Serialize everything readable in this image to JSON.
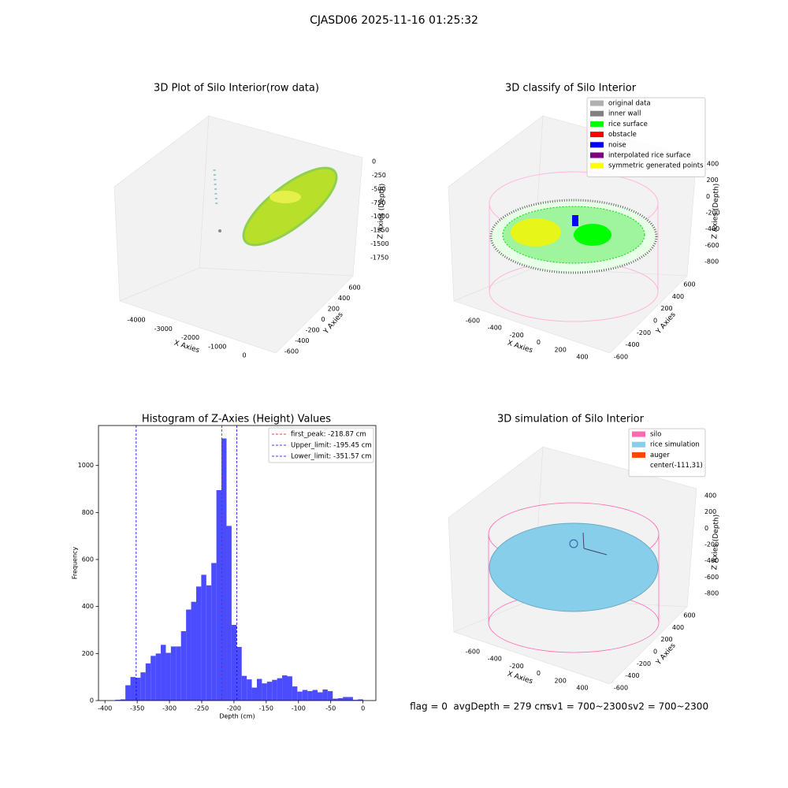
{
  "title": "CJASD06 2025-11-16 01:25:32",
  "chart_data": [
    {
      "type": "scatter3d",
      "title": "3D Plot of Silo Interior(row data)",
      "xlabel": "X Axies",
      "ylabel": "Y Axies",
      "zlabel": "Z Axies (Depth)",
      "xticks": [
        -4000,
        -3000,
        -2000,
        -1000,
        0
      ],
      "yticks": [
        -600,
        -400,
        -200,
        0,
        200,
        400,
        600
      ],
      "zticks": [
        -1750,
        -1500,
        -1250,
        -1000,
        -750,
        -500,
        -250,
        0
      ]
    },
    {
      "type": "scatter3d",
      "title": "3D classify of Silo Interior",
      "xlabel": "X Axies",
      "ylabel": "Y Axies",
      "zlabel": "Z Axies (Depth)",
      "xticks": [
        -600,
        -400,
        -200,
        0,
        200,
        400
      ],
      "yticks": [
        -600,
        -400,
        -200,
        0,
        200,
        400,
        600
      ],
      "zticks": [
        -800,
        -600,
        -400,
        -200,
        0,
        200,
        400
      ],
      "legend": [
        {
          "name": "original data",
          "color": "#b0b0b0"
        },
        {
          "name": "inner wall",
          "color": "#808080"
        },
        {
          "name": "rice surface",
          "color": "#00ff00"
        },
        {
          "name": "obstacle",
          "color": "#ff0000"
        },
        {
          "name": "noise",
          "color": "#0000ff"
        },
        {
          "name": "interpolated rice surface",
          "color": "#800080"
        },
        {
          "name": "symmetric generated points",
          "color": "#ffff00"
        }
      ]
    },
    {
      "type": "histogram",
      "title": "Histogram of Z-Axies (Height) Values",
      "xlabel": "Depth (cm)",
      "ylabel": "Frequency",
      "color": "#4b4bff",
      "bins": [
        -384,
        -376.16,
        -368.32,
        -360.48,
        -352.64,
        -344.8,
        -336.96,
        -329.12,
        -321.28,
        -313.44,
        -305.6,
        -297.76,
        -289.92,
        -282.08,
        -274.24,
        -266.4,
        -258.56,
        -250.72,
        -242.88,
        -235.04,
        -227.2,
        -219.36,
        -211.52,
        -203.68,
        -195.84,
        -188,
        -180.16,
        -172.32,
        -164.48,
        -156.64,
        -148.8,
        -140.96,
        -133.12,
        -125.28,
        -117.44,
        -109.6,
        -101.76,
        -93.92,
        -86.08,
        -78.24,
        -70.4,
        -62.56,
        -54.72,
        -46.88,
        -39.04,
        -31.2,
        -23.36,
        -15.52,
        -7.68,
        0.16
      ],
      "values": [
        3,
        5,
        65,
        100,
        97,
        120,
        158,
        190,
        200,
        237,
        203,
        230,
        230,
        295,
        387,
        420,
        485,
        535,
        490,
        585,
        895,
        1115,
        743,
        322,
        228,
        105,
        90,
        55,
        92,
        73,
        80,
        88,
        95,
        107,
        103,
        60,
        38,
        45,
        40,
        45,
        35,
        47,
        40,
        8,
        10,
        15,
        15,
        3,
        5
      ],
      "xlim": [
        -410,
        20
      ],
      "ylim": [
        0,
        1170
      ],
      "xticks": [
        -400,
        -350,
        -300,
        -250,
        -200,
        -150,
        -100,
        -50,
        0
      ],
      "yticks": [
        0,
        200,
        400,
        600,
        800,
        1000
      ],
      "vlines": [
        {
          "name": "first_peak: -218.87 cm",
          "value": -218.87,
          "color": "#ff0000"
        },
        {
          "name": "Upper_limit: -195.45 cm",
          "value": -195.45,
          "color": "#0000ff"
        },
        {
          "name": "Lower_limit: -351.57 cm",
          "value": -351.57,
          "color": "#0000ff"
        }
      ]
    },
    {
      "type": "surface3d",
      "title": "3D simulation of Silo Interior",
      "xlabel": "X Axies",
      "ylabel": "Y Axies",
      "zlabel": "Z Axies (Depth)",
      "xticks": [
        -600,
        -400,
        -200,
        0,
        200,
        400
      ],
      "yticks": [
        -600,
        -400,
        -200,
        0,
        200,
        400,
        600
      ],
      "zticks": [
        -800,
        -600,
        -400,
        -200,
        0,
        200,
        400
      ],
      "legend": [
        {
          "name": "silo",
          "color": "#ff69b4"
        },
        {
          "name": "rice simulation",
          "color": "#87ceeb"
        },
        {
          "name": "auger",
          "color": "#ff4500"
        },
        {
          "name": "center(-111,31)"
        }
      ]
    }
  ],
  "footer": [
    "flag = 0",
    "avgDepth = 279 cm",
    "sv1 = 700~2300",
    "sv2 = 700~2300"
  ]
}
